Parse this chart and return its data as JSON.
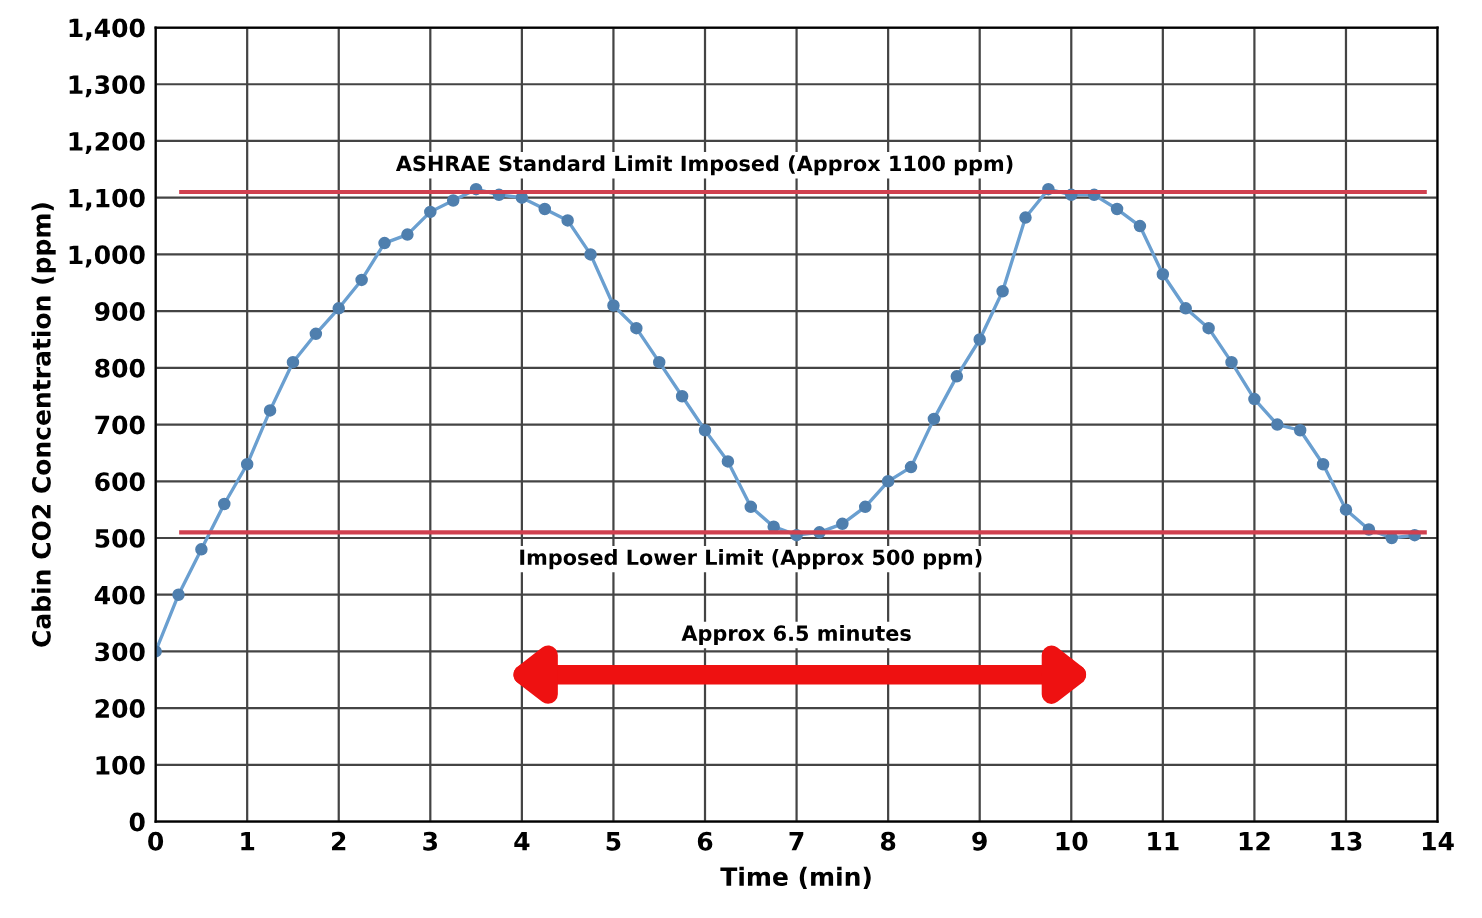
{
  "chart_data": {
    "type": "line",
    "xlabel": "Time (min)",
    "ylabel": "Cabin CO2 Concentration (ppm)",
    "x": [
      0,
      0.25,
      0.5,
      0.75,
      1,
      1.25,
      1.5,
      1.75,
      2,
      2.25,
      2.5,
      2.75,
      3,
      3.25,
      3.5,
      3.75,
      4,
      4.25,
      4.5,
      4.75,
      5,
      5.25,
      5.5,
      5.75,
      6,
      6.25,
      6.5,
      6.75,
      7,
      7.25,
      7.5,
      7.75,
      8,
      8.25,
      8.5,
      8.75,
      9,
      9.25,
      9.5,
      9.75,
      10,
      10.25,
      10.5,
      10.75,
      11,
      11.25,
      11.5,
      11.75,
      12,
      12.25,
      12.5,
      12.75,
      13,
      13.25,
      13.5,
      13.75
    ],
    "series": [
      {
        "color": "#6a9fd0",
        "values": [
          300,
          400,
          480,
          560,
          630,
          725,
          810,
          860,
          905,
          955,
          1020,
          1035,
          1075,
          1095,
          1115,
          1105,
          1100,
          1080,
          1060,
          1000,
          910,
          870,
          810,
          750,
          690,
          635,
          555,
          520,
          505,
          510,
          525,
          555,
          600,
          625,
          710,
          785,
          850,
          935,
          1065,
          1115,
          1105,
          1105,
          1080,
          1050,
          965,
          905,
          870,
          810,
          745,
          700,
          690,
          630,
          550,
          515,
          500,
          505
        ]
      }
    ],
    "marker": "circle",
    "xlim": [
      0,
      14
    ],
    "xticks": [
      0,
      1,
      2,
      3,
      4,
      5,
      6,
      7,
      8,
      9,
      10,
      11,
      12,
      13,
      14
    ],
    "ylim": [
      0,
      1400
    ],
    "yticks": [
      {
        "value": 0,
        "label": "0"
      },
      {
        "value": 100,
        "label": "100"
      },
      {
        "value": 200,
        "label": "200"
      },
      {
        "value": 300,
        "label": "300"
      },
      {
        "value": 400,
        "label": "400"
      },
      {
        "value": 500,
        "label": "500"
      },
      {
        "value": 600,
        "label": "600"
      },
      {
        "value": 700,
        "label": "700"
      },
      {
        "value": 800,
        "label": "800"
      },
      {
        "value": 900,
        "label": "900"
      },
      {
        "value": 1000,
        "label": "1,000"
      },
      {
        "value": 1100,
        "label": "1,100"
      },
      {
        "value": 1200,
        "label": "1,200"
      },
      {
        "value": 1300,
        "label": "1,300"
      },
      {
        "value": 1400,
        "label": "1,400"
      }
    ],
    "grid": true,
    "ref_lines": [
      {
        "axis": "y",
        "value": 1110,
        "label": "ASHRAE Standard Limit Imposed (Approx 1100 ppm)",
        "color": "#d0404f"
      },
      {
        "axis": "y",
        "value": 510,
        "label": "Imposed Lower Limit (Approx 500 ppm)",
        "color": "#d0404f"
      }
    ],
    "annotations": [
      "Approx 6.5 minutes"
    ]
  }
}
